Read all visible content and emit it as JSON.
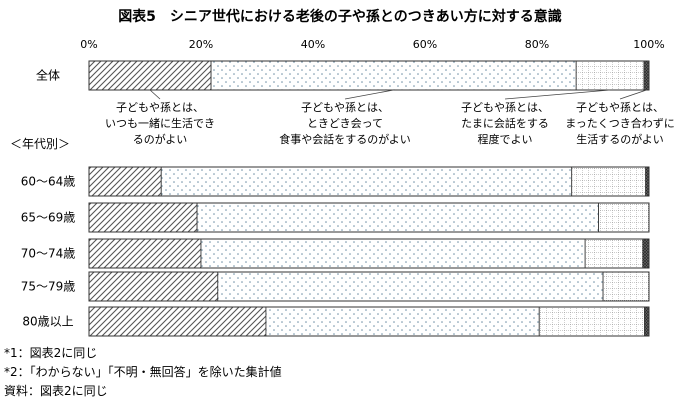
{
  "chart_data": {
    "type": "bar",
    "stacked": true,
    "horizontal": true,
    "title": "図表5　シニア世代における老後の子や孫とのつきあい方に対する意識",
    "xlim": [
      0,
      100
    ],
    "x_ticks": [
      "0%",
      "20%",
      "40%",
      "60%",
      "80%",
      "100%"
    ],
    "group_label": "＜年代別＞",
    "categories": [
      "全体",
      "60～64歳",
      "65～69歳",
      "70～74歳",
      "75～79歳",
      "80歳以上"
    ],
    "series": [
      {
        "name": "子どもや孫とは、いつも一緒に生活できるのがよい",
        "pattern": "diagonal",
        "values": [
          21.8,
          12.9,
          19.3,
          20.0,
          23.0,
          31.6
        ]
      },
      {
        "name": "子どもや孫とは、ときどき会って食事や会話をするのがよい",
        "pattern": "dots",
        "values": [
          65.2,
          73.3,
          71.7,
          68.6,
          68.8,
          48.8
        ]
      },
      {
        "name": "子どもや孫とは、たまに会話をする程度でよい",
        "pattern": "grid",
        "values": [
          12.1,
          13.2,
          9.0,
          10.3,
          8.2,
          18.8
        ]
      },
      {
        "name": "子どもや孫とは、まったくつき合わずに生活するのがよい",
        "pattern": "crosshatch",
        "values": [
          0.9,
          0.6,
          0.0,
          1.1,
          0.0,
          0.8
        ]
      }
    ],
    "annotations": [
      [
        "子どもや孫とは、",
        "いつも一緒に生活でき",
        "るのがよい"
      ],
      [
        "子どもや孫とは、",
        "ときどき会って",
        "食事や会話をするのがよい"
      ],
      [
        "子どもや孫とは、",
        "たまに会話をする",
        "程度でよい"
      ],
      [
        "子どもや孫とは、",
        "まったくつき合わずに",
        "生活するのがよい"
      ]
    ]
  },
  "notes": [
    "*1：図表2に同じ",
    "*2：「わからない」「不明・無回答」を除いた集計値",
    "資料：図表2に同じ"
  ]
}
